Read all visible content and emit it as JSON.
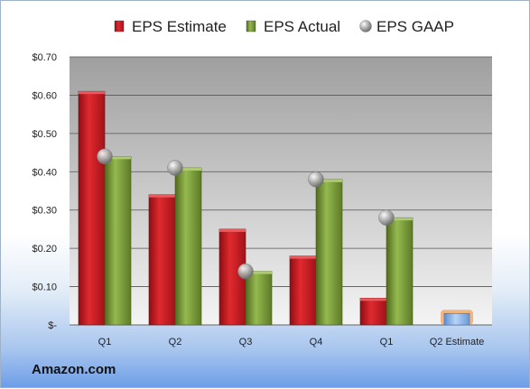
{
  "brand": "Amazon.com",
  "colors": {
    "estimate": "#c8161d",
    "actual": "#7a9a3a",
    "gaap": "#a8a8a8",
    "q2_estimate": "#8fb8ec",
    "q2_estimate_glow": "#f2a15a"
  },
  "chart_data": {
    "type": "bar",
    "categories": [
      "Q1",
      "Q2",
      "Q3",
      "Q4",
      "Q1",
      "Q2 Estimate"
    ],
    "series": [
      {
        "name": "EPS Estimate",
        "values": [
          0.61,
          0.34,
          0.25,
          0.18,
          0.07,
          null
        ]
      },
      {
        "name": "EPS Actual",
        "values": [
          0.44,
          0.41,
          0.14,
          0.38,
          0.28,
          null
        ]
      },
      {
        "name": "EPS GAAP",
        "marker": "sphere",
        "values": [
          0.44,
          0.41,
          0.14,
          0.38,
          0.28,
          null
        ]
      }
    ],
    "forecast": {
      "category": "Q2 Estimate",
      "value": 0.03
    },
    "ylim": [
      0,
      0.7
    ],
    "yticks": [
      0,
      0.1,
      0.2,
      0.3,
      0.4,
      0.5,
      0.6,
      0.7
    ],
    "ytick_labels": [
      "$-",
      "$0.10",
      "$0.20",
      "$0.30",
      "$0.40",
      "$0.50",
      "$0.60",
      "$0.70"
    ],
    "legend_position": "top",
    "grid": true
  }
}
